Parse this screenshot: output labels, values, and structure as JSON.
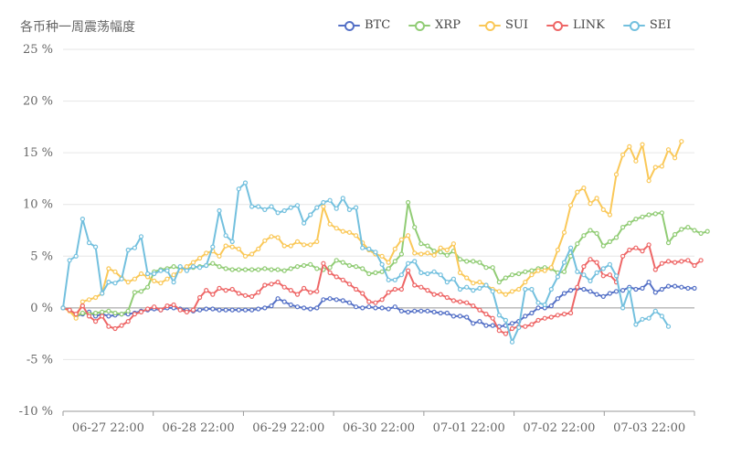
{
  "chart_data": {
    "type": "line",
    "title": "各币种一周震荡幅度",
    "ylim": [
      -10,
      25
    ],
    "y_ticks": [
      "25 %",
      "20 %",
      "15 %",
      "10 %",
      "5 %",
      "0 %",
      "-5 %",
      "-10 %"
    ],
    "y_tick_values": [
      25,
      20,
      15,
      10,
      5,
      0,
      -5,
      -10
    ],
    "x_tick_labels": [
      "06-27 22:00",
      "06-28 22:00",
      "06-29 22:00",
      "06-30 22:00",
      "07-01 22:00",
      "07-02 22:00",
      "07-03 22:00"
    ],
    "grid": "horizontal",
    "legend_position": "top-right",
    "series": [
      {
        "name": "BTC",
        "color": "#5470c6",
        "values": [
          0,
          -0.2,
          -0.8,
          -0.6,
          -0.4,
          -0.8,
          -0.6,
          -0.8,
          -0.7,
          -0.6,
          -0.6,
          -0.5,
          -0.3,
          -0.2,
          -0.1,
          -0.2,
          0,
          0,
          -0.1,
          -0.2,
          -0.3,
          -0.2,
          -0.1,
          -0.1,
          -0.2,
          -0.2,
          -0.2,
          -0.2,
          -0.2,
          -0.2,
          -0.1,
          0,
          0.2,
          0.9,
          0.6,
          0.3,
          0.1,
          0,
          -0.1,
          0,
          0.8,
          0.9,
          0.8,
          0.7,
          0.5,
          0.1,
          0,
          0.1,
          0,
          0,
          -0.1,
          0.1,
          -0.3,
          -0.4,
          -0.3,
          -0.3,
          -0.3,
          -0.4,
          -0.5,
          -0.5,
          -0.8,
          -0.8,
          -0.9,
          -1.5,
          -1.3,
          -1.7,
          -1.7,
          -1.8,
          -1.7,
          -1.5,
          -1.3,
          -0.8,
          -0.5,
          0,
          0,
          0.2,
          0.9,
          1.4,
          1.7,
          1.9,
          1.8,
          1.6,
          1.3,
          1.1,
          1.4,
          1.6,
          1.7,
          2,
          1.8,
          1.9,
          2.5,
          1.5,
          1.8,
          2.1,
          2.1,
          2,
          1.9,
          1.9
        ]
      },
      {
        "name": "XRP",
        "color": "#91cc75",
        "values": [
          0,
          -0.2,
          -0.8,
          -0.5,
          -0.6,
          -0.5,
          -0.4,
          -0.3,
          -0.5,
          -0.6,
          -0.3,
          1.5,
          1.6,
          2,
          3.5,
          3.7,
          3.8,
          4,
          3.8,
          3.8,
          3.9,
          4,
          4.1,
          4.3,
          4,
          3.8,
          3.7,
          3.7,
          3.7,
          3.7,
          3.7,
          3.8,
          3.7,
          3.7,
          3.6,
          3.8,
          4,
          4.1,
          4.2,
          3.8,
          3.7,
          3.9,
          4.6,
          4.4,
          4.1,
          4,
          3.8,
          3.3,
          3.4,
          3.5,
          3.8,
          4.5,
          5.2,
          10.2,
          7.8,
          6.2,
          6,
          5.5,
          5.4,
          5.1,
          5.5,
          4.7,
          4.5,
          4.5,
          4.4,
          3.9,
          3.9,
          2.5,
          2.9,
          3.2,
          3.3,
          3.5,
          3.6,
          3.8,
          3.9,
          3.8,
          3.4,
          3.5,
          5,
          6.2,
          7,
          7.5,
          7.2,
          6,
          6.4,
          6.8,
          7.8,
          8.2,
          8.6,
          8.8,
          9,
          9.1,
          9.2,
          6.3,
          7.1,
          7.6,
          7.8,
          7.5,
          7.2,
          7.4
        ]
      },
      {
        "name": "SUI",
        "color": "#fac858",
        "values": [
          0,
          -0.3,
          -1,
          0.6,
          0.8,
          1,
          1.4,
          3.8,
          3.5,
          2.9,
          2.5,
          2.8,
          3.3,
          3,
          2.6,
          2.4,
          2.8,
          3.2,
          3.6,
          4,
          4.4,
          4.8,
          5.3,
          5.5,
          5,
          6,
          5.9,
          5.7,
          5,
          5.2,
          5.7,
          6.5,
          6.9,
          6.8,
          6,
          6,
          6.4,
          6.1,
          6.1,
          6.4,
          9.8,
          8.1,
          7.7,
          7.4,
          7.3,
          7,
          6.3,
          5.6,
          5.2,
          5,
          4.4,
          5.7,
          6.6,
          7,
          5.3,
          5.2,
          5.3,
          5.1,
          5.8,
          5.6,
          6.2,
          3.4,
          2.9,
          2.4,
          2.5,
          2.2,
          1.8,
          1.6,
          1.3,
          1.6,
          1.8,
          2.5,
          3.2,
          3.6,
          3.6,
          3.9,
          5.6,
          7.3,
          9.9,
          11.2,
          11.6,
          10.1,
          10.6,
          9.5,
          9,
          12.9,
          14.8,
          15.6,
          14.2,
          15.8,
          12.3,
          13.6,
          13.7,
          15.3,
          14.5,
          16.1
        ]
      },
      {
        "name": "LINK",
        "color": "#ee6666",
        "values": [
          0,
          -0.2,
          -0.6,
          0.2,
          -0.8,
          -1.3,
          -0.8,
          -1.8,
          -2,
          -1.7,
          -1.3,
          -0.6,
          -0.4,
          -0.1,
          0.1,
          -0.2,
          0.2,
          0.3,
          -0.2,
          -0.4,
          -0.2,
          1,
          1.7,
          1.3,
          1.9,
          1.7,
          1.8,
          1.4,
          1.2,
          1.1,
          1.5,
          2.2,
          2.3,
          2.5,
          2,
          1.7,
          1.3,
          1.9,
          1.5,
          1.6,
          4.3,
          3.4,
          3,
          2.7,
          2.3,
          1.8,
          1.4,
          0.6,
          0.5,
          0.8,
          1.5,
          1.8,
          1.8,
          3.6,
          2.2,
          2,
          1.7,
          1.3,
          1.3,
          1,
          0.7,
          0.6,
          0.5,
          0.2,
          -0.2,
          -0.6,
          -1,
          -2.2,
          -2.5,
          -2,
          -1.8,
          -1.8,
          -1.6,
          -1.2,
          -1,
          -0.9,
          -0.7,
          -0.6,
          -0.5,
          2,
          4,
          4.7,
          4.4,
          3.1,
          3.2,
          2.5,
          5,
          5.6,
          5.8,
          5.5,
          6.1,
          3.7,
          4.3,
          4.5,
          4.4,
          4.5,
          4.6,
          4.1,
          4.6
        ]
      },
      {
        "name": "SEI",
        "color": "#73c0de",
        "values": [
          0,
          4.6,
          5,
          8.6,
          6.3,
          5.9,
          1.4,
          2.5,
          2.4,
          2.8,
          5.6,
          5.8,
          6.9,
          3.3,
          3.3,
          3.6,
          3.6,
          2.5,
          4,
          3.6,
          4,
          3.9,
          4.1,
          5.9,
          9.4,
          7,
          6.4,
          11.5,
          12.1,
          9.8,
          9.8,
          9.5,
          9.8,
          9.2,
          9.4,
          9.7,
          9.9,
          8.2,
          9,
          9.7,
          10.2,
          10.4,
          9.6,
          10.6,
          9.5,
          9.7,
          5.8,
          5.7,
          5.4,
          4.2,
          2.7,
          2.7,
          3.2,
          4.3,
          4.5,
          3.4,
          3.3,
          3.5,
          3.2,
          2.5,
          2.8,
          1.8,
          2,
          1.7,
          1.9,
          2.2,
          1.6,
          -0.7,
          -1.2,
          -3.3,
          -1.9,
          1.8,
          1.8,
          0.5,
          0.3,
          1.8,
          3,
          4.4,
          5.8,
          3.5,
          3.2,
          2.6,
          3.4,
          3.8,
          4.2,
          3.1,
          0,
          1.8,
          -1.6,
          -1.1,
          -1,
          -0.3,
          -0.8,
          -1.8
        ]
      }
    ]
  }
}
